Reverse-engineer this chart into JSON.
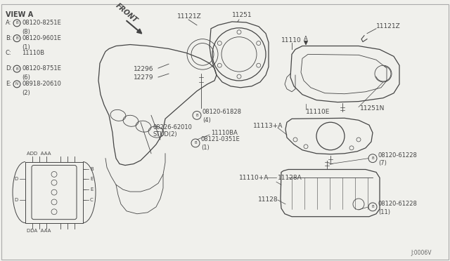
{
  "bg_color": "#f0f0ec",
  "line_color": "#444444",
  "view_a_label": "VIEW A",
  "legend": [
    {
      "key": "A:",
      "circle": "B",
      "text": "08120-8251E",
      "sub": "(8)"
    },
    {
      "key": "B:",
      "circle": "B",
      "text": "08120-9601E",
      "sub": "(1)"
    },
    {
      "key": "C:",
      "circle": "",
      "text": "11110B",
      "sub": ""
    },
    {
      "key": "D:",
      "circle": "B",
      "text": "08120-8751E",
      "sub": "(6)"
    },
    {
      "key": "E:",
      "circle": "N",
      "text": "08918-20610",
      "sub": "(2)"
    }
  ]
}
